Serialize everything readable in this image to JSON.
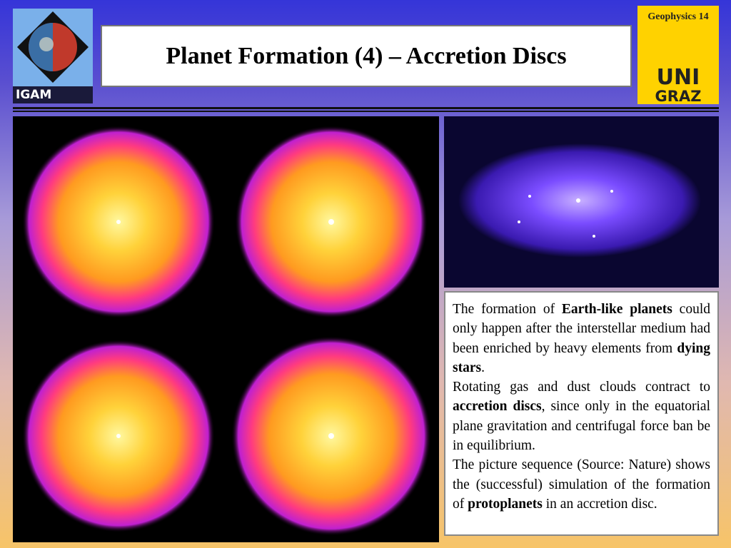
{
  "header": {
    "title": "Planet Formation (4) – Accretion Discs",
    "course": "Geophysics 14",
    "left_logo": "IGAM",
    "right_logo_top": "UNI",
    "right_logo_bottom": "GRAZ"
  },
  "body": {
    "paragraphs": [
      [
        {
          "text": "The formation of "
        },
        {
          "text": "Earth-like planets",
          "bold": true
        },
        {
          "text": " could only happen after the interstellar medium had been enriched by heavy elements from "
        },
        {
          "text": "dying stars",
          "bold": true
        },
        {
          "text": "."
        }
      ],
      [
        {
          "text": "Rotating gas and dust clouds contract to "
        },
        {
          "text": "accretion discs",
          "bold": true
        },
        {
          "text": ", since only in the equatorial plane gravitation and centrifugal force ban be in equilibrium."
        }
      ],
      [
        {
          "text": "The picture sequence (Source: Nature) shows the (successful) simulation of the formation of "
        },
        {
          "text": "protoplanets",
          "bold": true
        },
        {
          "text": " in an accretion disc."
        }
      ]
    ]
  }
}
